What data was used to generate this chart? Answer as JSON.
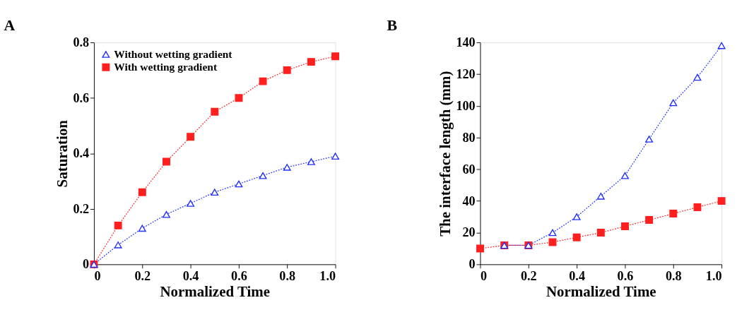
{
  "chart_data": [
    {
      "type": "line",
      "title": "A",
      "xlabel": "Normalized Time",
      "ylabel": "Saturation",
      "x": [
        0,
        0.1,
        0.2,
        0.3,
        0.4,
        0.5,
        0.6,
        0.7,
        0.8,
        0.9,
        1.0
      ],
      "series": [
        {
          "name": "Without wetting gradient",
          "color": "#1f2fff",
          "marker": "triangle",
          "values": [
            0,
            0.07,
            0.13,
            0.18,
            0.22,
            0.26,
            0.29,
            0.32,
            0.35,
            0.37,
            0.39
          ]
        },
        {
          "name": "With wetting gradient",
          "color": "#ff1f1f",
          "marker": "square",
          "values": [
            0,
            0.14,
            0.26,
            0.37,
            0.46,
            0.55,
            0.6,
            0.66,
            0.7,
            0.73,
            0.75
          ]
        }
      ],
      "xlim": [
        0,
        1
      ],
      "xticks": [
        0,
        0.2,
        0.4,
        0.6,
        0.8,
        {
          "value": 1,
          "label": "1.0"
        }
      ],
      "ylim": [
        0,
        0.8
      ],
      "yticks": [
        0,
        0.2,
        0.4,
        0.6,
        0.8
      ],
      "grid": false,
      "legend": "top left",
      "line_style": "dotted"
    },
    {
      "type": "line",
      "title": "B",
      "xlabel": "Normalized Time",
      "ylabel": "The interface length (mm)",
      "x": [
        0,
        0.1,
        0.2,
        0.3,
        0.4,
        0.5,
        0.6,
        0.7,
        0.8,
        0.9,
        1.0
      ],
      "series": [
        {
          "name": "Without wetting gradient",
          "color": "#1f2fff",
          "marker": "triangle",
          "values": [
            null,
            12,
            12,
            20,
            30,
            43,
            56,
            79,
            102,
            118,
            138
          ]
        },
        {
          "name": "With wetting gradient",
          "color": "#ff1f1f",
          "marker": "square",
          "values": [
            10,
            12,
            12,
            14,
            17,
            20,
            24,
            28,
            32,
            36,
            40
          ]
        }
      ],
      "xlim": [
        0,
        1
      ],
      "xticks": [
        0,
        0.2,
        0.4,
        0.6,
        0.8,
        {
          "value": 1,
          "label": "1.0"
        }
      ],
      "ylim": [
        0,
        140
      ],
      "yticks": [
        0,
        20,
        40,
        60,
        80,
        100,
        120,
        140
      ],
      "grid": false,
      "legend": "top left",
      "line_style": "dotted"
    }
  ]
}
